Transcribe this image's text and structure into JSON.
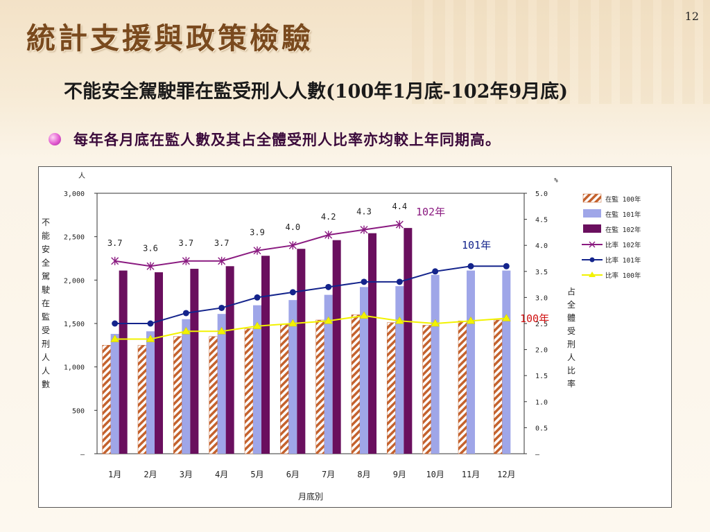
{
  "page": {
    "number": "12",
    "title": "統計支援與政策檢驗",
    "subtitle": "不能安全駕駛罪在監受刑人人數(100年1月底-102年9月底)",
    "bullet": "每年各月底在監人數及其占全體受刑人比率亦均較上年同期高。"
  },
  "colors": {
    "bar100": "#c4622e",
    "bar101": "#9fa6e8",
    "bar102": "#6a0f5e",
    "line102": "#8a1a80",
    "line101": "#14248c",
    "line100": "#f2f200"
  },
  "chart_data": {
    "type": "bar",
    "categories": [
      "1月",
      "2月",
      "3月",
      "4月",
      "5月",
      "6月",
      "7月",
      "8月",
      "9月",
      "10月",
      "11月",
      "12月"
    ],
    "xlabel": "月底別",
    "ylabel": "不能安全駕駛在監受刑人人數",
    "ylabel_unit": "人",
    "y2label": "占全體受刑人比率",
    "y2label_unit": "%",
    "ylim": [
      0,
      3000
    ],
    "y2lim": [
      0,
      5.0
    ],
    "yticks": [
      "–",
      "500",
      "1,000",
      "1,500",
      "2,000",
      "2,500",
      "3,000"
    ],
    "y2ticks": [
      "–",
      "0.5",
      "1.0",
      "1.5",
      "2.0",
      "2.5",
      "3.0",
      "3.5",
      "4.0",
      "4.5",
      "5.0"
    ],
    "bar_series": [
      {
        "name": "在監 100年",
        "values": [
          1250,
          1250,
          1350,
          1350,
          1440,
          1490,
          1540,
          1600,
          1510,
          1480,
          1530,
          1540
        ]
      },
      {
        "name": "在監 101年",
        "values": [
          1380,
          1410,
          1550,
          1610,
          1710,
          1770,
          1830,
          1920,
          1930,
          2060,
          2110,
          2110
        ]
      },
      {
        "name": "在監 102年",
        "values": [
          2110,
          2090,
          2130,
          2160,
          2280,
          2360,
          2460,
          2540,
          2600
        ]
      }
    ],
    "line_series": [
      {
        "name": "比率 102年",
        "values": [
          3.7,
          3.6,
          3.7,
          3.7,
          3.9,
          4.0,
          4.2,
          4.3,
          4.4
        ],
        "labels": [
          "3.7",
          "3.6",
          "3.7",
          "3.7",
          "3.9",
          "4.0",
          "4.2",
          "4.3",
          "4.4"
        ]
      },
      {
        "name": "比率 101年",
        "values": [
          2.5,
          2.5,
          2.7,
          2.8,
          3.0,
          3.1,
          3.2,
          3.3,
          3.3,
          3.5,
          3.6,
          3.6
        ]
      },
      {
        "name": "比率 100年",
        "values": [
          2.2,
          2.2,
          2.35,
          2.35,
          2.45,
          2.5,
          2.55,
          2.65,
          2.55,
          2.5,
          2.55,
          2.6
        ]
      }
    ],
    "annotations": [
      {
        "text": "102年",
        "series": "102"
      },
      {
        "text": "101年",
        "series": "101"
      },
      {
        "text": "100年",
        "series": "100"
      }
    ],
    "legend_position": "top-right"
  }
}
